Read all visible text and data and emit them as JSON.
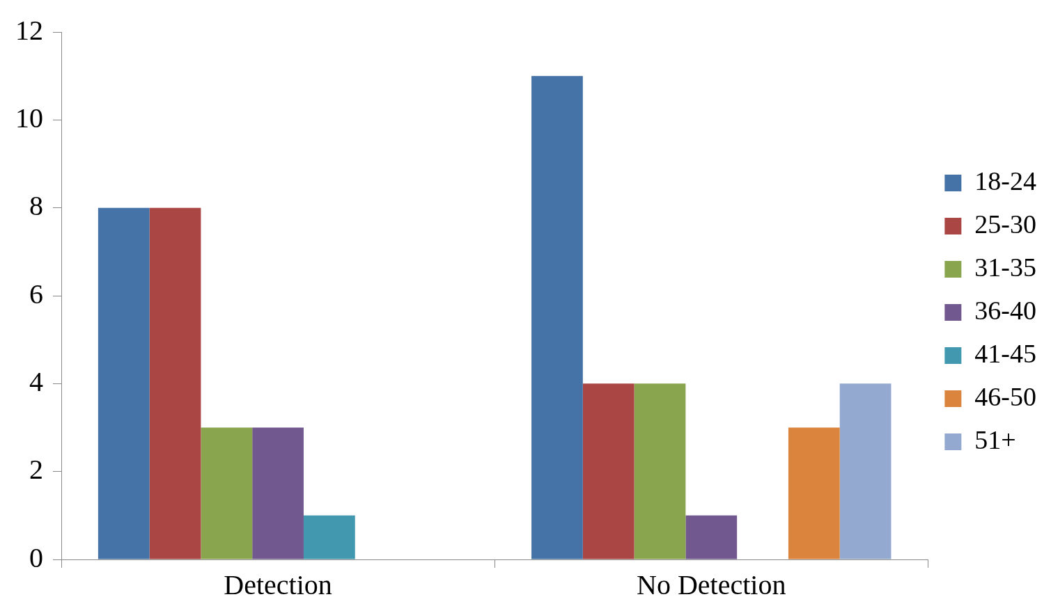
{
  "chart_data": {
    "type": "bar",
    "categories": [
      "Detection",
      "No Detection"
    ],
    "series": [
      {
        "name": "18-24",
        "color": "#4572a7",
        "values": [
          8,
          11
        ]
      },
      {
        "name": "25-30",
        "color": "#aa4643",
        "values": [
          8,
          4
        ]
      },
      {
        "name": "31-35",
        "color": "#89a54e",
        "values": [
          3,
          4
        ]
      },
      {
        "name": "36-40",
        "color": "#71588f",
        "values": [
          3,
          1
        ]
      },
      {
        "name": "41-45",
        "color": "#4198af",
        "values": [
          1,
          0
        ]
      },
      {
        "name": "46-50",
        "color": "#db843d",
        "values": [
          0,
          3
        ]
      },
      {
        "name": "51+",
        "color": "#93a9cf",
        "values": [
          0,
          4
        ]
      }
    ],
    "ylim": [
      0,
      12
    ],
    "yticks": [
      0,
      2,
      4,
      6,
      8,
      10,
      12
    ],
    "grid": false,
    "legend": "right"
  }
}
